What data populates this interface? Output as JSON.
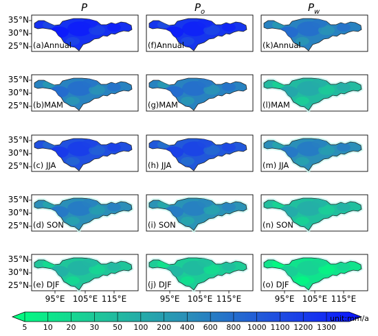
{
  "columns": [
    {
      "symbol": "P",
      "subscript": ""
    },
    {
      "symbol": "P",
      "subscript": "o"
    },
    {
      "symbol": "P",
      "subscript": "w"
    }
  ],
  "lat_ticks": [
    "35°N",
    "30°N",
    "25°N"
  ],
  "lon_ticks": [
    "95°E",
    "105°E",
    "115°E"
  ],
  "panels": [
    {
      "row": 0,
      "col": 0,
      "label": "(a)Annual",
      "level": 0.88
    },
    {
      "row": 1,
      "col": 0,
      "label": "(b)MAM",
      "level": 0.55
    },
    {
      "row": 2,
      "col": 0,
      "label": "(c) JJA",
      "level": 0.75
    },
    {
      "row": 3,
      "col": 0,
      "label": "(d) SON",
      "level": 0.5
    },
    {
      "row": 4,
      "col": 0,
      "label": "(e) DJF",
      "level": 0.25
    },
    {
      "row": 0,
      "col": 1,
      "label": "(f)Annual",
      "level": 0.86
    },
    {
      "row": 1,
      "col": 1,
      "label": "(g)MAM",
      "level": 0.55
    },
    {
      "row": 2,
      "col": 1,
      "label": "(h) JJA",
      "level": 0.72
    },
    {
      "row": 3,
      "col": 1,
      "label": "(i) SON",
      "level": 0.48
    },
    {
      "row": 4,
      "col": 1,
      "label": "(j) DJF",
      "level": 0.22
    },
    {
      "row": 0,
      "col": 2,
      "label": "(k)Annual",
      "level": 0.55
    },
    {
      "row": 1,
      "col": 2,
      "label": "(l)MAM",
      "level": 0.3
    },
    {
      "row": 2,
      "col": 2,
      "label": "(m) JJA",
      "level": 0.5
    },
    {
      "row": 3,
      "col": 2,
      "label": "(n) SON",
      "level": 0.28
    },
    {
      "row": 4,
      "col": 2,
      "label": "(o) DJF",
      "level": 0.12
    }
  ],
  "colorbar": {
    "ticks": [
      "5",
      "10",
      "20",
      "30",
      "50",
      "100",
      "200",
      "400",
      "600",
      "800",
      "1000",
      "1100",
      "1200",
      "1300"
    ],
    "unit": "unit:mm/a",
    "colors": [
      "#00ff7f",
      "#0a3cf0"
    ]
  }
}
